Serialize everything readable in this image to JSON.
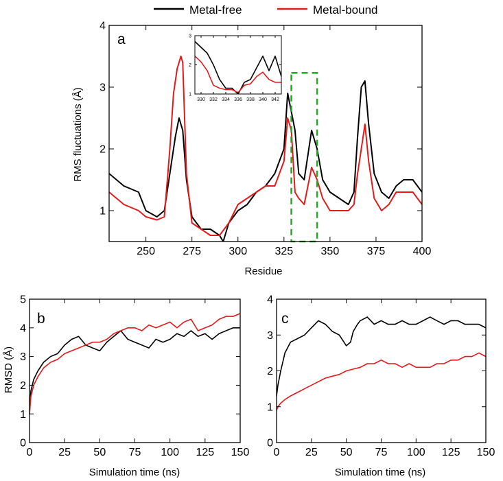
{
  "legend": {
    "entries": [
      {
        "label": "Metal-free",
        "color": "#000000"
      },
      {
        "label": "Metal-bound",
        "color": "#e41a1a"
      }
    ],
    "placement": "top-center"
  },
  "chart_data": [
    {
      "panel": "a",
      "type": "line",
      "xlabel": "Residue",
      "ylabel": "RMS fluctuations (Å)",
      "xlim": [
        230,
        400
      ],
      "ylim": [
        0.5,
        4
      ],
      "xticks": [
        250,
        275,
        300,
        325,
        350,
        375,
        400
      ],
      "yticks": [
        1,
        2,
        3,
        4
      ],
      "highlight_range": [
        329,
        343
      ],
      "highlight_color": "#22aa22",
      "series": [
        {
          "name": "Metal-free",
          "color": "#000000",
          "x": [
            230,
            238,
            246,
            250,
            256,
            260,
            263,
            266,
            268,
            270,
            272,
            275,
            280,
            285,
            290,
            292,
            295,
            300,
            305,
            310,
            315,
            320,
            325,
            327,
            329,
            331,
            333,
            336,
            340,
            343,
            346,
            350,
            355,
            360,
            363,
            365,
            367,
            369,
            371,
            374,
            378,
            382,
            386,
            390,
            395,
            400
          ],
          "values": [
            1.6,
            1.4,
            1.3,
            1.0,
            0.9,
            1.0,
            1.6,
            2.2,
            2.5,
            2.3,
            1.5,
            0.9,
            0.7,
            0.7,
            0.6,
            0.5,
            0.8,
            1.0,
            1.1,
            1.3,
            1.4,
            1.6,
            2.0,
            2.9,
            2.6,
            2.3,
            1.6,
            1.5,
            2.3,
            2.0,
            1.5,
            1.3,
            1.2,
            1.1,
            1.3,
            2.2,
            3.0,
            3.1,
            2.4,
            1.6,
            1.3,
            1.2,
            1.4,
            1.5,
            1.5,
            1.3
          ]
        },
        {
          "name": "Metal-bound",
          "color": "#e41a1a",
          "x": [
            230,
            238,
            246,
            250,
            256,
            260,
            263,
            265,
            267,
            269,
            270,
            272,
            275,
            280,
            285,
            290,
            295,
            300,
            305,
            310,
            315,
            320,
            325,
            327,
            329,
            331,
            333,
            336,
            340,
            343,
            346,
            350,
            355,
            360,
            363,
            365,
            367,
            369,
            371,
            374,
            378,
            382,
            386,
            390,
            395,
            400
          ],
          "values": [
            1.3,
            1.1,
            1.0,
            0.9,
            0.85,
            0.9,
            2.0,
            2.9,
            3.3,
            3.5,
            3.4,
            1.6,
            0.8,
            0.7,
            0.6,
            0.6,
            0.8,
            1.1,
            1.2,
            1.3,
            1.4,
            1.4,
            1.8,
            2.5,
            2.3,
            1.3,
            1.2,
            1.1,
            1.7,
            1.5,
            1.2,
            1.0,
            1.0,
            1.0,
            1.1,
            1.6,
            2.0,
            2.4,
            1.8,
            1.2,
            1.0,
            1.1,
            1.3,
            1.3,
            1.3,
            1.1
          ]
        }
      ]
    },
    {
      "panel": "a-inset",
      "type": "line",
      "xlim": [
        329,
        343
      ],
      "ylim": [
        1,
        3
      ],
      "xticks": [
        330,
        332,
        334,
        336,
        338,
        340,
        342
      ],
      "yticks": [
        1,
        2,
        3
      ],
      "series": [
        {
          "name": "Metal-free",
          "color": "#000000",
          "x": [
            329,
            330,
            331,
            332,
            333,
            334,
            335,
            336,
            337,
            338,
            339,
            340,
            341,
            342,
            343
          ],
          "values": [
            2.8,
            2.6,
            2.4,
            2.0,
            1.5,
            1.2,
            1.2,
            1.0,
            1.4,
            1.5,
            1.9,
            2.3,
            1.8,
            2.3,
            1.6
          ]
        },
        {
          "name": "Metal-bound",
          "color": "#e41a1a",
          "x": [
            329,
            330,
            331,
            332,
            333,
            334,
            335,
            336,
            337,
            338,
            339,
            340,
            341,
            342,
            343
          ],
          "values": [
            2.3,
            2.1,
            1.8,
            1.3,
            1.2,
            1.15,
            1.15,
            1.05,
            1.3,
            1.35,
            1.6,
            1.75,
            1.5,
            1.4,
            1.4
          ]
        }
      ]
    },
    {
      "panel": "b",
      "type": "line",
      "xlabel": "Simulation time (ns)",
      "ylabel": "RMSD (Å)",
      "xlim": [
        0,
        150
      ],
      "ylim": [
        0,
        5
      ],
      "xticks": [
        0,
        25,
        50,
        75,
        100,
        125,
        150
      ],
      "yticks": [
        0,
        1,
        2,
        3,
        4,
        5
      ],
      "series": [
        {
          "name": "Metal-free",
          "color": "#000000",
          "x": [
            0,
            1,
            3,
            6,
            10,
            15,
            20,
            25,
            30,
            35,
            40,
            45,
            50,
            55,
            60,
            65,
            70,
            75,
            80,
            85,
            90,
            95,
            100,
            105,
            110,
            115,
            120,
            125,
            130,
            135,
            140,
            145,
            150
          ],
          "values": [
            1.0,
            1.8,
            2.2,
            2.5,
            2.8,
            3.0,
            3.1,
            3.4,
            3.6,
            3.7,
            3.4,
            3.3,
            3.2,
            3.5,
            3.7,
            3.9,
            3.6,
            3.5,
            3.4,
            3.3,
            3.6,
            3.5,
            3.6,
            3.8,
            3.7,
            3.9,
            3.7,
            3.8,
            3.6,
            3.8,
            3.9,
            4.0,
            4.0
          ]
        },
        {
          "name": "Metal-bound",
          "color": "#e41a1a",
          "x": [
            0,
            1,
            3,
            6,
            10,
            15,
            20,
            25,
            30,
            35,
            40,
            45,
            50,
            55,
            60,
            65,
            70,
            75,
            80,
            85,
            90,
            95,
            100,
            105,
            110,
            115,
            120,
            125,
            130,
            135,
            140,
            145,
            150
          ],
          "values": [
            1.0,
            1.6,
            2.0,
            2.3,
            2.6,
            2.8,
            2.9,
            3.1,
            3.2,
            3.3,
            3.4,
            3.5,
            3.5,
            3.6,
            3.8,
            3.9,
            4.0,
            4.0,
            3.9,
            4.1,
            4.0,
            4.1,
            4.2,
            4.0,
            4.2,
            4.3,
            3.9,
            4.0,
            4.1,
            4.3,
            4.4,
            4.4,
            4.5
          ]
        }
      ]
    },
    {
      "panel": "c",
      "type": "line",
      "xlabel": "Simulation time (ns)",
      "xlim": [
        0,
        150
      ],
      "ylim": [
        0,
        4
      ],
      "xticks": [
        0,
        25,
        50,
        75,
        100,
        125,
        150
      ],
      "yticks": [
        0,
        1,
        2,
        3,
        4
      ],
      "series": [
        {
          "name": "Metal-free",
          "color": "#000000",
          "x": [
            0,
            1,
            3,
            6,
            10,
            15,
            20,
            25,
            30,
            35,
            40,
            45,
            50,
            53,
            55,
            58,
            60,
            65,
            70,
            75,
            80,
            85,
            90,
            95,
            100,
            105,
            110,
            115,
            120,
            125,
            130,
            135,
            140,
            145,
            150
          ],
          "values": [
            1.3,
            1.6,
            2.0,
            2.5,
            2.8,
            2.9,
            3.0,
            3.2,
            3.4,
            3.3,
            3.1,
            3.0,
            2.7,
            2.8,
            3.1,
            3.3,
            3.4,
            3.5,
            3.3,
            3.4,
            3.3,
            3.3,
            3.4,
            3.3,
            3.3,
            3.4,
            3.5,
            3.4,
            3.3,
            3.4,
            3.4,
            3.3,
            3.3,
            3.3,
            3.2
          ]
        },
        {
          "name": "Metal-bound",
          "color": "#e41a1a",
          "x": [
            0,
            1,
            3,
            6,
            10,
            15,
            20,
            25,
            30,
            35,
            40,
            45,
            50,
            55,
            60,
            65,
            70,
            75,
            80,
            85,
            90,
            95,
            100,
            105,
            110,
            115,
            120,
            125,
            130,
            135,
            140,
            145,
            150
          ],
          "values": [
            0.9,
            1.0,
            1.1,
            1.2,
            1.3,
            1.4,
            1.5,
            1.6,
            1.7,
            1.8,
            1.85,
            1.9,
            2.0,
            2.05,
            2.1,
            2.2,
            2.2,
            2.3,
            2.2,
            2.2,
            2.1,
            2.2,
            2.1,
            2.1,
            2.1,
            2.2,
            2.2,
            2.3,
            2.3,
            2.4,
            2.4,
            2.5,
            2.4
          ]
        }
      ]
    }
  ]
}
